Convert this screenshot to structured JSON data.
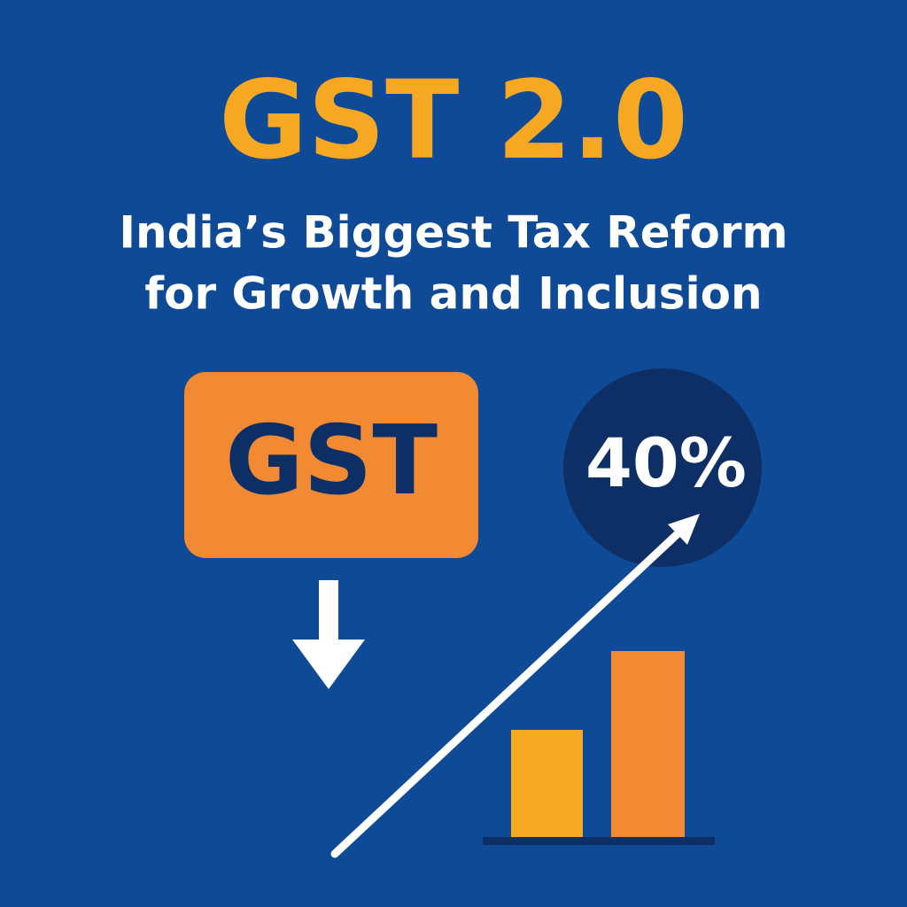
{
  "header": {
    "title": "GST 2.0",
    "subtitle": [
      "India’s Biggest Tax Reform",
      "for Growth and Inclusion"
    ]
  },
  "badge": {
    "label": "GST"
  },
  "circle": {
    "label": "40%"
  }
}
